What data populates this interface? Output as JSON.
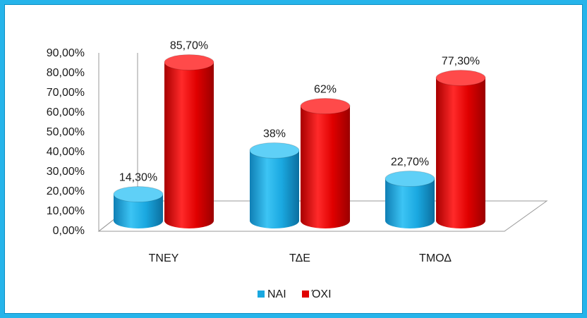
{
  "chart_data": {
    "type": "bar",
    "style": "3d-cylinder",
    "categories": [
      "ΤΝΕΥ",
      "ΤΔΕ",
      "ΤΜΟΔ"
    ],
    "series": [
      {
        "name": "ΝΑΙ",
        "values": [
          14.3,
          38,
          22.7
        ],
        "labels": [
          "14,30%",
          "38%",
          "22,70%"
        ],
        "color": "#1aa8e0"
      },
      {
        "name": "ΌΧΙ",
        "values": [
          85.7,
          62,
          77.3
        ],
        "labels": [
          "85,70%",
          "62%",
          "77,30%"
        ],
        "color": "#e00000"
      }
    ],
    "yticks": [
      "0,00%",
      "10,00%",
      "20,00%",
      "30,00%",
      "40,00%",
      "50,00%",
      "60,00%",
      "70,00%",
      "80,00%",
      "90,00%"
    ],
    "ylim": [
      0,
      90
    ],
    "grid": false,
    "legend_position": "bottom"
  },
  "colors": {
    "frame": "#26b4ea",
    "nai": "#1aa8e0",
    "oxi": "#e00000"
  }
}
